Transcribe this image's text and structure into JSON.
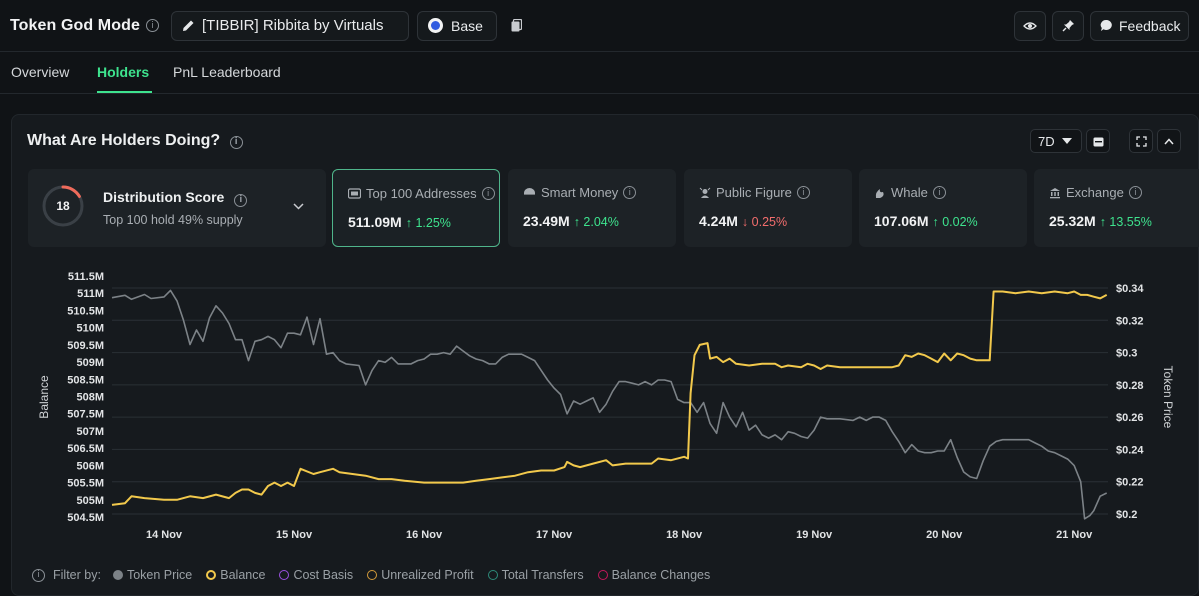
{
  "header": {
    "app_title": "Token God Mode",
    "token_name": "[TIBBIR] Ribbita by Virtuals",
    "chain": "Base",
    "feedback_label": "Feedback"
  },
  "nav": {
    "tabs": [
      "Overview",
      "Holders",
      "PnL Leaderboard"
    ],
    "active": "Holders"
  },
  "panel": {
    "title": "What Are Holders Doing?",
    "range": "7D"
  },
  "distribution": {
    "score": "18",
    "title": "Distribution Score",
    "subtitle": "Top 100 hold 49% supply"
  },
  "cards": [
    {
      "label": "Top 100 Addresses",
      "value": "511.09M",
      "change": "↑ 1.25%",
      "direction": "up",
      "icon": "wallet-icon"
    },
    {
      "label": "Smart Money",
      "value": "23.49M",
      "change": "↑ 2.04%",
      "direction": "up",
      "icon": "smart-money-icon"
    },
    {
      "label": "Public Figure",
      "value": "4.24M",
      "change": "↓ 0.25%",
      "direction": "down",
      "icon": "public-figure-icon"
    },
    {
      "label": "Whale",
      "value": "107.06M",
      "change": "↑ 0.02%",
      "direction": "up",
      "icon": "whale-icon"
    },
    {
      "label": "Exchange",
      "value": "25.32M",
      "change": "↑ 13.55%",
      "direction": "up",
      "icon": "exchange-icon"
    }
  ],
  "filters": {
    "label": "Filter by:",
    "items": [
      {
        "label": "Token Price",
        "color": "#7c8287",
        "filled": true
      },
      {
        "label": "Balance",
        "color": "#f2c94c",
        "filled": false
      },
      {
        "label": "Cost Basis",
        "color": "#9b51e0",
        "filled": false
      },
      {
        "label": "Unrealized Profit",
        "color": "#d29a3a",
        "filled": false
      },
      {
        "label": "Total Transfers",
        "color": "#2e8b7a",
        "filled": false
      },
      {
        "label": "Balance Changes",
        "color": "#c2185b",
        "filled": false
      }
    ]
  },
  "chart_data": {
    "type": "line",
    "title": "",
    "xlabel": "",
    "ylabel": "Balance",
    "y2label": "Token Price",
    "x_ticks": [
      "14 Nov",
      "15 Nov",
      "16 Nov",
      "17 Nov",
      "18 Nov",
      "19 Nov",
      "20 Nov",
      "21 Nov"
    ],
    "y_ticks": [
      "511.5M",
      "511M",
      "510.5M",
      "510M",
      "509.5M",
      "509M",
      "508.5M",
      "508M",
      "507.5M",
      "507M",
      "506.5M",
      "506M",
      "505.5M",
      "505M",
      "504.5M"
    ],
    "y2_ticks": [
      "$0.34",
      "$0.32",
      "$0.3",
      "$0.28",
      "$0.26",
      "$0.24",
      "$0.22",
      "$0.2"
    ],
    "ylim": [
      504.5,
      511.5
    ],
    "y2lim": [
      0.2,
      0.34
    ],
    "x_domain": [
      13.6,
      21.26
    ],
    "grid": true,
    "series": [
      {
        "name": "Token Price",
        "color": "#7c8287",
        "axis": "right",
        "points": [
          [
            13.6,
            0.334
          ],
          [
            13.7,
            0.3355
          ],
          [
            13.75,
            0.333
          ],
          [
            13.85,
            0.336
          ],
          [
            13.9,
            0.3335
          ],
          [
            14.0,
            0.3345
          ],
          [
            14.05,
            0.3385
          ],
          [
            14.1,
            0.332
          ],
          [
            14.15,
            0.32
          ],
          [
            14.2,
            0.305
          ],
          [
            14.25,
            0.314
          ],
          [
            14.3,
            0.307
          ],
          [
            14.35,
            0.3215
          ],
          [
            14.4,
            0.329
          ],
          [
            14.45,
            0.3245
          ],
          [
            14.5,
            0.318
          ],
          [
            14.55,
            0.308
          ],
          [
            14.6,
            0.308
          ],
          [
            14.65,
            0.295
          ],
          [
            14.7,
            0.307
          ],
          [
            14.75,
            0.308
          ],
          [
            14.8,
            0.31
          ],
          [
            14.85,
            0.308
          ],
          [
            14.9,
            0.303
          ],
          [
            14.95,
            0.312
          ],
          [
            15.0,
            0.312
          ],
          [
            15.05,
            0.311
          ],
          [
            15.1,
            0.322
          ],
          [
            15.15,
            0.305
          ],
          [
            15.2,
            0.321
          ],
          [
            15.25,
            0.299
          ],
          [
            15.3,
            0.3
          ],
          [
            15.35,
            0.295
          ],
          [
            15.4,
            0.293
          ],
          [
            15.5,
            0.292
          ],
          [
            15.55,
            0.28
          ],
          [
            15.6,
            0.289
          ],
          [
            15.65,
            0.295
          ],
          [
            15.7,
            0.294
          ],
          [
            15.75,
            0.297
          ],
          [
            15.8,
            0.293
          ],
          [
            15.85,
            0.293
          ],
          [
            15.9,
            0.293
          ],
          [
            15.95,
            0.295
          ],
          [
            16.0,
            0.296
          ],
          [
            16.05,
            0.299
          ],
          [
            16.1,
            0.299
          ],
          [
            16.15,
            0.3
          ],
          [
            16.2,
            0.299
          ],
          [
            16.25,
            0.304
          ],
          [
            16.3,
            0.301
          ],
          [
            16.35,
            0.298
          ],
          [
            16.4,
            0.296
          ],
          [
            16.45,
            0.295
          ],
          [
            16.5,
            0.293
          ],
          [
            16.55,
            0.293
          ],
          [
            16.6,
            0.297
          ],
          [
            16.65,
            0.299
          ],
          [
            16.7,
            0.299
          ],
          [
            16.75,
            0.299
          ],
          [
            16.8,
            0.297
          ],
          [
            16.85,
            0.295
          ],
          [
            16.9,
            0.289
          ],
          [
            16.95,
            0.283
          ],
          [
            17.0,
            0.278
          ],
          [
            17.05,
            0.274
          ],
          [
            17.1,
            0.262
          ],
          [
            17.15,
            0.27
          ],
          [
            17.2,
            0.268
          ],
          [
            17.25,
            0.27
          ],
          [
            17.3,
            0.272
          ],
          [
            17.35,
            0.263
          ],
          [
            17.4,
            0.268
          ],
          [
            17.45,
            0.276
          ],
          [
            17.5,
            0.282
          ],
          [
            17.55,
            0.282
          ],
          [
            17.6,
            0.281
          ],
          [
            17.65,
            0.28
          ],
          [
            17.7,
            0.282
          ],
          [
            17.75,
            0.28
          ],
          [
            17.8,
            0.283
          ],
          [
            17.85,
            0.283
          ],
          [
            17.9,
            0.282
          ],
          [
            17.95,
            0.271
          ],
          [
            18.0,
            0.269
          ],
          [
            18.05,
            0.269
          ],
          [
            18.1,
            0.263
          ],
          [
            18.15,
            0.269
          ],
          [
            18.2,
            0.256
          ],
          [
            18.25,
            0.25
          ],
          [
            18.3,
            0.269
          ],
          [
            18.35,
            0.26
          ],
          [
            18.4,
            0.254
          ],
          [
            18.45,
            0.263
          ],
          [
            18.5,
            0.252
          ],
          [
            18.55,
            0.255
          ],
          [
            18.6,
            0.249
          ],
          [
            18.65,
            0.247
          ],
          [
            18.7,
            0.249
          ],
          [
            18.75,
            0.246
          ],
          [
            18.8,
            0.251
          ],
          [
            18.85,
            0.25
          ],
          [
            18.9,
            0.248
          ],
          [
            18.95,
            0.247
          ],
          [
            19.0,
            0.252
          ],
          [
            19.05,
            0.26
          ],
          [
            19.1,
            0.259
          ],
          [
            19.2,
            0.259
          ],
          [
            19.3,
            0.258
          ],
          [
            19.35,
            0.26
          ],
          [
            19.4,
            0.258
          ],
          [
            19.45,
            0.26
          ],
          [
            19.5,
            0.26
          ],
          [
            19.55,
            0.258
          ],
          [
            19.6,
            0.251
          ],
          [
            19.65,
            0.245
          ],
          [
            19.7,
            0.238
          ],
          [
            19.75,
            0.243
          ],
          [
            19.8,
            0.239
          ],
          [
            19.85,
            0.238
          ],
          [
            19.9,
            0.238
          ],
          [
            19.95,
            0.239
          ],
          [
            20.0,
            0.239
          ],
          [
            20.05,
            0.246
          ],
          [
            20.1,
            0.235
          ],
          [
            20.15,
            0.226
          ],
          [
            20.2,
            0.223
          ],
          [
            20.25,
            0.222
          ],
          [
            20.3,
            0.233
          ],
          [
            20.35,
            0.242
          ],
          [
            20.4,
            0.245
          ],
          [
            20.45,
            0.246
          ],
          [
            20.55,
            0.246
          ],
          [
            20.65,
            0.246
          ],
          [
            20.7,
            0.244
          ],
          [
            20.75,
            0.242
          ],
          [
            20.8,
            0.239
          ],
          [
            20.85,
            0.238
          ],
          [
            20.9,
            0.236
          ],
          [
            20.95,
            0.234
          ],
          [
            21.0,
            0.23
          ],
          [
            21.05,
            0.22
          ],
          [
            21.08,
            0.197
          ],
          [
            21.1,
            0.198
          ],
          [
            21.12,
            0.199
          ],
          [
            21.15,
            0.202
          ],
          [
            21.2,
            0.211
          ],
          [
            21.25,
            0.213
          ]
        ]
      },
      {
        "name": "Balance",
        "color": "#f2c94c",
        "axis": "left",
        "points": [
          [
            13.6,
            504.85
          ],
          [
            13.7,
            504.9
          ],
          [
            13.75,
            505.1
          ],
          [
            13.85,
            505.05
          ],
          [
            14.0,
            505.0
          ],
          [
            14.1,
            505.0
          ],
          [
            14.2,
            505.1
          ],
          [
            14.3,
            505.05
          ],
          [
            14.4,
            505.15
          ],
          [
            14.5,
            505.05
          ],
          [
            14.55,
            505.2
          ],
          [
            14.6,
            505.3
          ],
          [
            14.65,
            505.3
          ],
          [
            14.7,
            505.2
          ],
          [
            14.75,
            505.15
          ],
          [
            14.8,
            505.4
          ],
          [
            14.85,
            505.5
          ],
          [
            14.9,
            505.4
          ],
          [
            14.95,
            505.5
          ],
          [
            15.0,
            505.4
          ],
          [
            15.05,
            505.9
          ],
          [
            15.15,
            505.75
          ],
          [
            15.2,
            505.8
          ],
          [
            15.3,
            505.9
          ],
          [
            15.35,
            505.8
          ],
          [
            15.45,
            505.75
          ],
          [
            15.55,
            505.7
          ],
          [
            15.65,
            505.6
          ],
          [
            15.75,
            505.6
          ],
          [
            15.85,
            505.55
          ],
          [
            16.0,
            505.5
          ],
          [
            16.1,
            505.5
          ],
          [
            16.2,
            505.5
          ],
          [
            16.3,
            505.5
          ],
          [
            16.4,
            505.55
          ],
          [
            16.5,
            505.6
          ],
          [
            16.6,
            505.65
          ],
          [
            16.7,
            505.7
          ],
          [
            16.8,
            505.8
          ],
          [
            16.9,
            505.85
          ],
          [
            17.0,
            505.85
          ],
          [
            17.08,
            505.95
          ],
          [
            17.1,
            506.1
          ],
          [
            17.15,
            506.0
          ],
          [
            17.2,
            505.95
          ],
          [
            17.3,
            506.05
          ],
          [
            17.4,
            506.15
          ],
          [
            17.45,
            506.0
          ],
          [
            17.55,
            506.05
          ],
          [
            17.65,
            506.05
          ],
          [
            17.75,
            506.05
          ],
          [
            17.8,
            506.2
          ],
          [
            17.9,
            506.15
          ],
          [
            18.0,
            506.25
          ],
          [
            18.03,
            506.2
          ],
          [
            18.05,
            508.1
          ],
          [
            18.08,
            509.2
          ],
          [
            18.12,
            509.5
          ],
          [
            18.18,
            509.55
          ],
          [
            18.2,
            509.1
          ],
          [
            18.25,
            509.15
          ],
          [
            18.3,
            509.0
          ],
          [
            18.35,
            509.1
          ],
          [
            18.4,
            508.95
          ],
          [
            18.5,
            508.9
          ],
          [
            18.6,
            508.95
          ],
          [
            18.7,
            508.95
          ],
          [
            18.75,
            508.85
          ],
          [
            18.8,
            508.9
          ],
          [
            18.9,
            508.85
          ],
          [
            18.95,
            508.95
          ],
          [
            19.0,
            508.9
          ],
          [
            19.05,
            508.8
          ],
          [
            19.1,
            508.9
          ],
          [
            19.2,
            508.85
          ],
          [
            19.3,
            508.85
          ],
          [
            19.4,
            508.85
          ],
          [
            19.5,
            508.85
          ],
          [
            19.6,
            508.85
          ],
          [
            19.65,
            508.9
          ],
          [
            19.7,
            509.2
          ],
          [
            19.75,
            509.15
          ],
          [
            19.8,
            509.25
          ],
          [
            19.85,
            509.2
          ],
          [
            19.9,
            509.1
          ],
          [
            19.95,
            509.0
          ],
          [
            20.0,
            509.25
          ],
          [
            20.05,
            509.05
          ],
          [
            20.1,
            509.25
          ],
          [
            20.15,
            509.2
          ],
          [
            20.2,
            509.1
          ],
          [
            20.25,
            509.05
          ],
          [
            20.3,
            509.05
          ],
          [
            20.35,
            509.05
          ],
          [
            20.38,
            511.05
          ],
          [
            20.45,
            511.05
          ],
          [
            20.55,
            511.0
          ],
          [
            20.65,
            511.05
          ],
          [
            20.75,
            511.0
          ],
          [
            20.85,
            511.05
          ],
          [
            20.95,
            511.0
          ],
          [
            21.0,
            511.05
          ],
          [
            21.05,
            510.95
          ],
          [
            21.1,
            510.95
          ],
          [
            21.15,
            510.9
          ],
          [
            21.2,
            510.85
          ],
          [
            21.25,
            510.95
          ]
        ]
      }
    ]
  }
}
